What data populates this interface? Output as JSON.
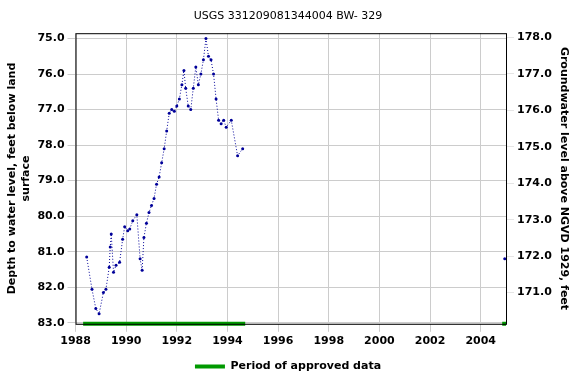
{
  "chart_data": {
    "type": "line",
    "title": "USGS 331209081344004 BW- 329",
    "y_label": [
      "Depth to water level, feet below land",
      "surface"
    ],
    "y2_label": "Groundwater level above NGVD 1929, feet",
    "x": [
      1988.44,
      1988.65,
      1988.8,
      1988.93,
      1989.1,
      1989.2,
      1989.33,
      1989.37,
      1989.41,
      1989.5,
      1989.6,
      1989.74,
      1989.86,
      1989.94,
      1990.06,
      1990.14,
      1990.26,
      1990.42,
      1990.55,
      1990.63,
      1990.7,
      1990.8,
      1990.9,
      1991.0,
      1991.1,
      1991.2,
      1991.3,
      1991.4,
      1991.5,
      1991.6,
      1991.7,
      1991.8,
      1991.9,
      1992.0,
      1992.1,
      1992.2,
      1992.28,
      1992.35,
      1992.45,
      1992.55,
      1992.65,
      1992.75,
      1992.85,
      1992.95,
      1993.05,
      1993.15,
      1993.25,
      1993.35,
      1993.45,
      1993.55,
      1993.65,
      1993.75,
      1993.85,
      1993.95,
      1994.15,
      1994.4,
      1994.6,
      2004.95
    ],
    "values": [
      81.15,
      82.06,
      82.6,
      82.75,
      82.15,
      82.06,
      81.44,
      80.87,
      80.5,
      81.58,
      81.38,
      81.3,
      80.65,
      80.3,
      80.41,
      80.36,
      80.13,
      79.96,
      81.2,
      81.52,
      80.6,
      80.2,
      79.9,
      79.7,
      79.5,
      79.1,
      78.9,
      78.5,
      78.1,
      77.6,
      77.1,
      77.0,
      77.05,
      76.9,
      76.7,
      76.3,
      75.9,
      76.4,
      76.9,
      77.0,
      76.4,
      75.8,
      76.3,
      76.0,
      75.6,
      75.0,
      75.5,
      75.6,
      76.0,
      76.7,
      77.3,
      77.4,
      77.3,
      77.5,
      77.3,
      78.3,
      78.1,
      81.2
    ],
    "color": "#000099",
    "marker": "point",
    "line_style": "dotted",
    "approved_periods": {
      "name": "Period of approved data",
      "color": "#009900",
      "ranges": [
        [
          1988.3,
          1994.7
        ],
        [
          2004.85,
          2005.0
        ]
      ]
    },
    "xlim": [
      1988,
      2005
    ],
    "xticks": [
      1988,
      1990,
      1992,
      1994,
      1996,
      1998,
      2000,
      2002,
      2004
    ],
    "ylim": [
      83.03,
      74.85
    ],
    "yticks": [
      {
        "value": 75,
        "label": "75.0"
      },
      {
        "value": 76,
        "label": "76.0"
      },
      {
        "value": 77,
        "label": "77.0"
      },
      {
        "value": 78,
        "label": "78.0"
      },
      {
        "value": 79,
        "label": "79.0"
      },
      {
        "value": 80,
        "label": "80.0"
      },
      {
        "value": 81,
        "label": "81.0"
      },
      {
        "value": 82,
        "label": "82.0"
      },
      {
        "value": 83,
        "label": "83.0"
      }
    ],
    "y2lim": [
      170.14,
      178.12
    ],
    "y2ticks": [
      {
        "value": 171,
        "label": "171.0"
      },
      {
        "value": 172,
        "label": "172.0"
      },
      {
        "value": 173,
        "label": "173.0"
      },
      {
        "value": 174,
        "label": "174.0"
      },
      {
        "value": 175,
        "label": "175.0"
      },
      {
        "value": 176,
        "label": "176.0"
      },
      {
        "value": 177,
        "label": "177.0"
      },
      {
        "value": 178,
        "label": "178.0"
      }
    ],
    "grid": true,
    "legend": "bottom"
  }
}
